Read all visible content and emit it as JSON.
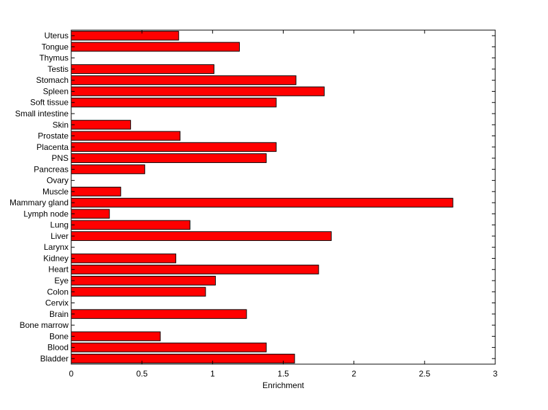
{
  "chart_data": {
    "type": "bar",
    "orientation": "horizontal",
    "title": "",
    "xlabel": "Enrichment",
    "ylabel": "",
    "xlim": [
      0,
      3
    ],
    "xticks": [
      0,
      0.5,
      1,
      1.5,
      2,
      2.5,
      3
    ],
    "xtick_labels": [
      "0",
      "0.5",
      "1",
      "1.5",
      "2",
      "2.5",
      "3"
    ],
    "grid": false,
    "bar_color": "#ff0000",
    "bar_edge_color": "#000000",
    "categories": [
      "Bladder",
      "Blood",
      "Bone",
      "Bone marrow",
      "Brain",
      "Cervix",
      "Colon",
      "Eye",
      "Heart",
      "Kidney",
      "Larynx",
      "Liver",
      "Lung",
      "Lymph node",
      "Mammary gland",
      "Muscle",
      "Ovary",
      "Pancreas",
      "PNS",
      "Placenta",
      "Prostate",
      "Skin",
      "Small intestine",
      "Soft tissue",
      "Spleen",
      "Stomach",
      "Testis",
      "Thymus",
      "Tongue",
      "Uterus"
    ],
    "values": [
      1.58,
      1.38,
      0.63,
      0,
      1.24,
      0,
      0.95,
      1.02,
      1.75,
      0.74,
      0,
      1.84,
      0.84,
      0.27,
      2.7,
      0.35,
      0,
      0.52,
      1.38,
      1.45,
      0.77,
      0.42,
      0,
      1.45,
      1.79,
      1.59,
      1.01,
      0,
      1.19,
      0.76
    ]
  }
}
